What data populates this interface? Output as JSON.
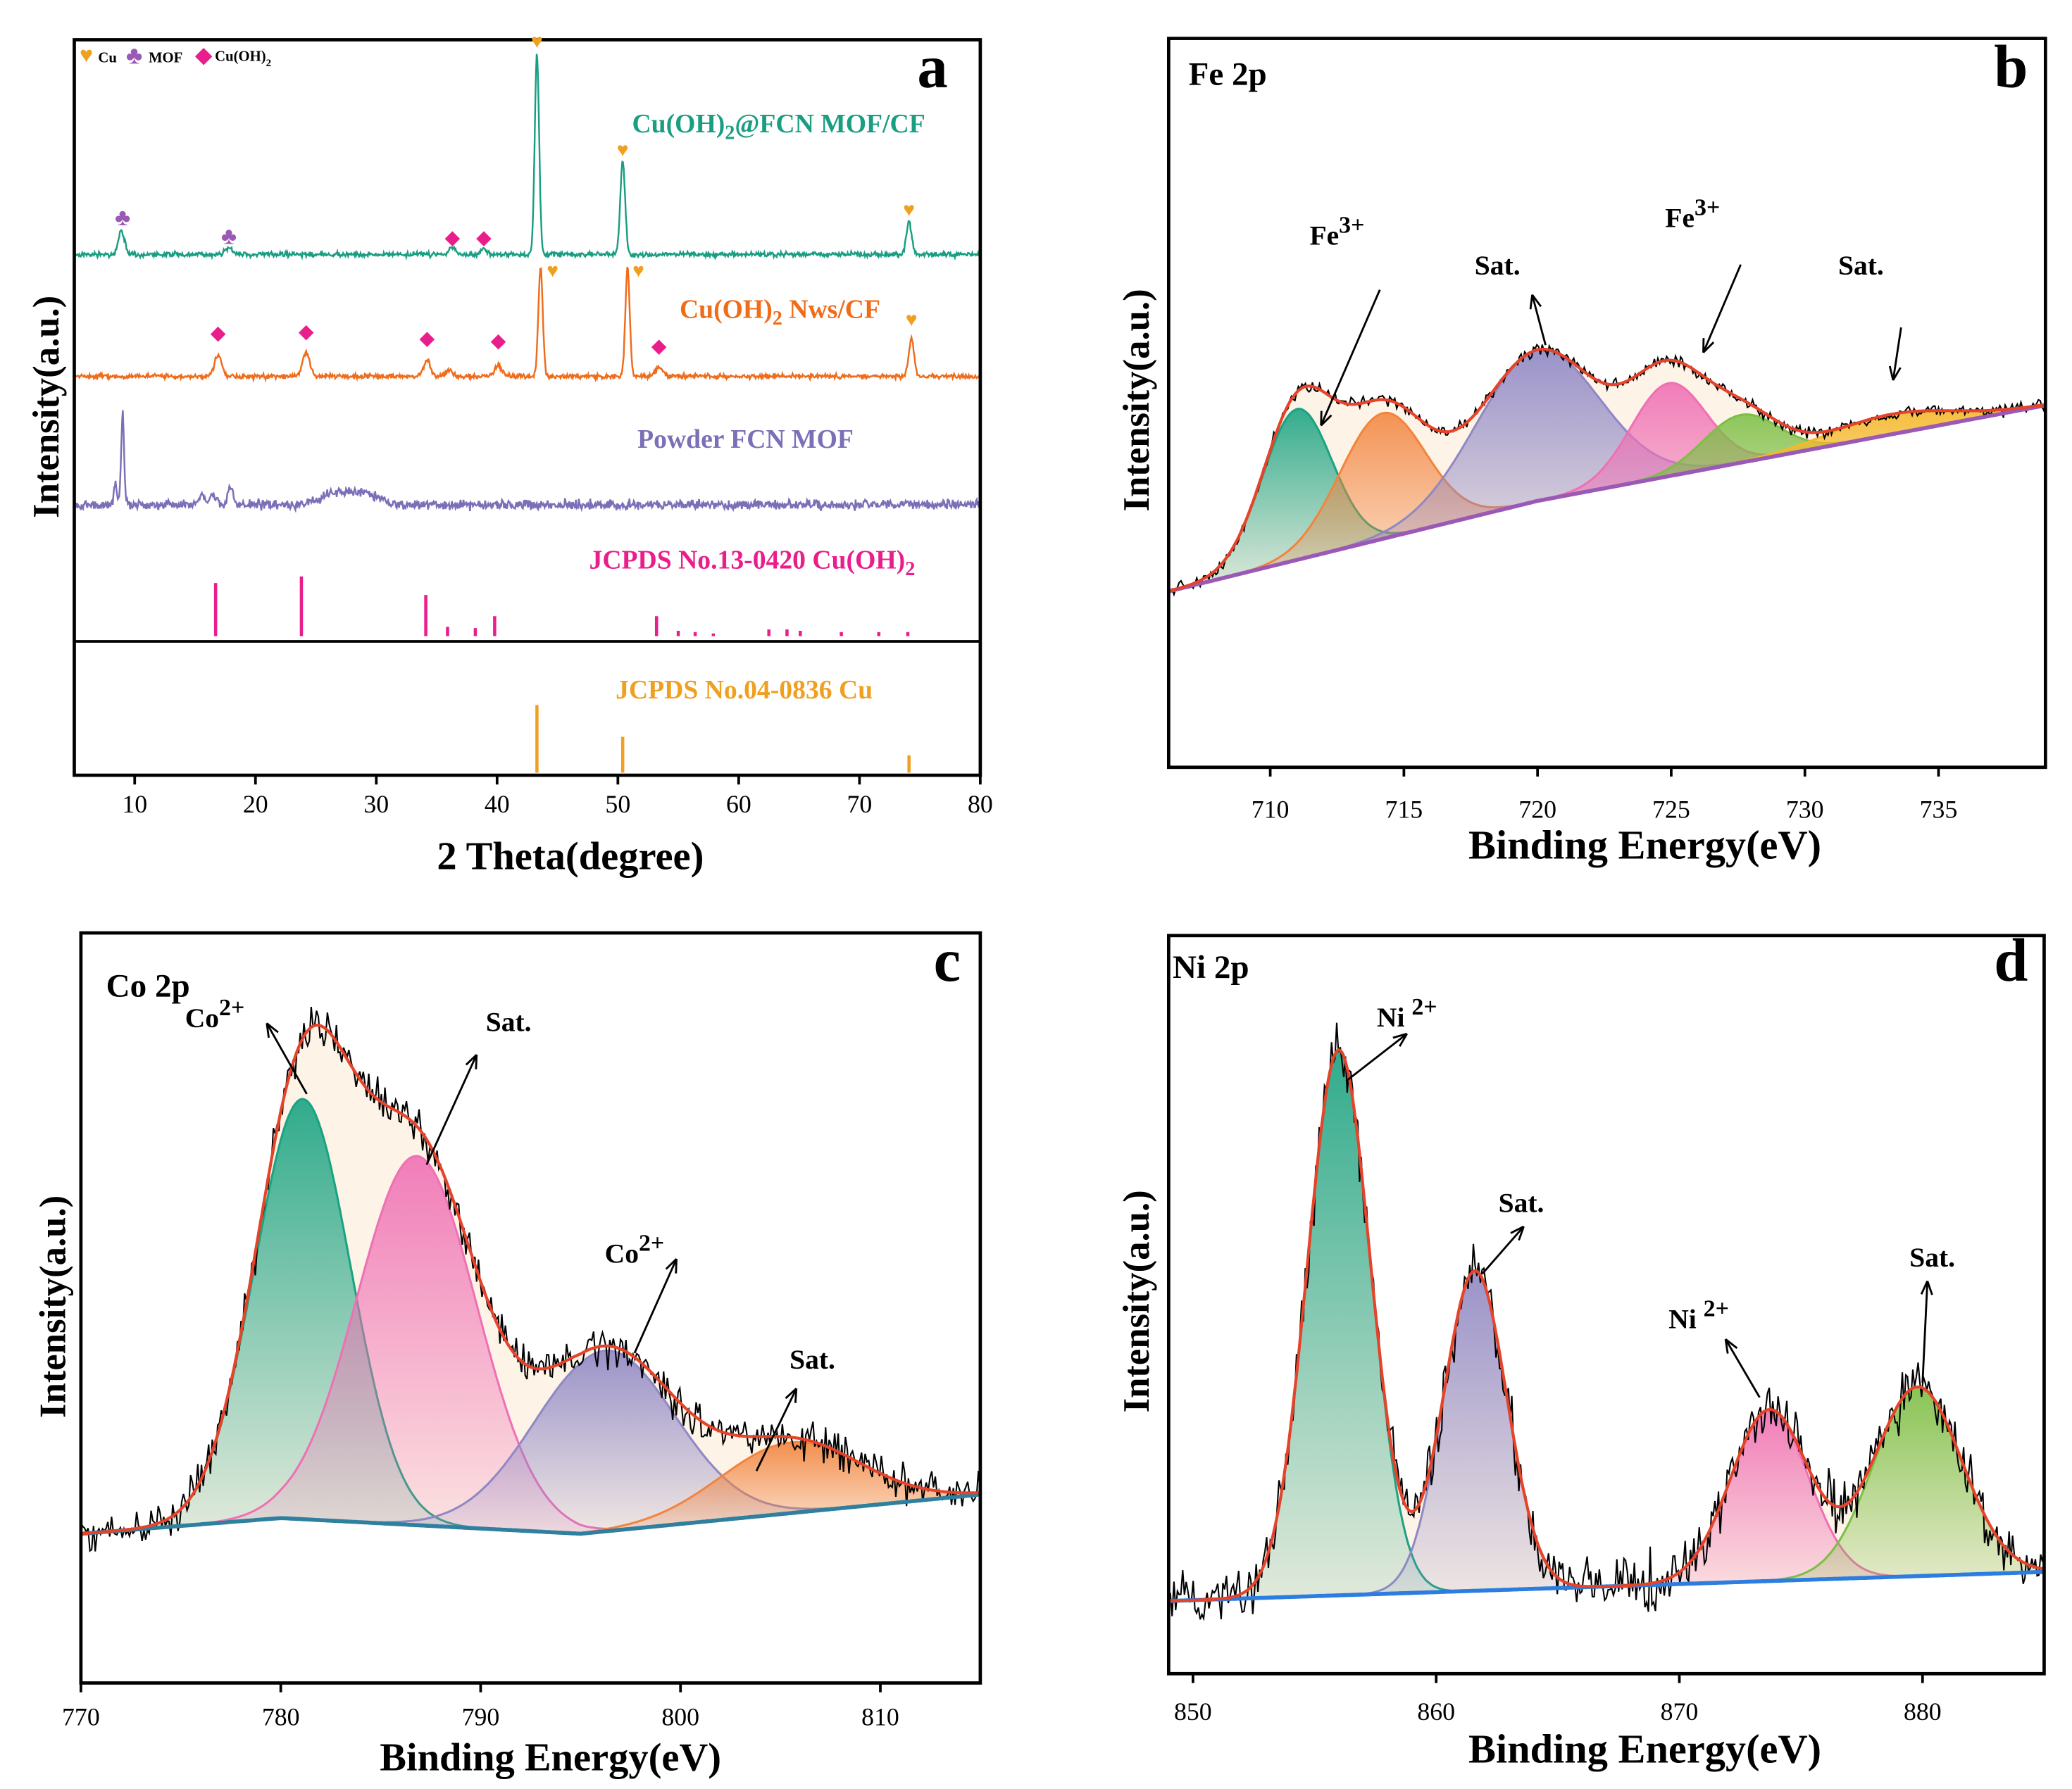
{
  "chart_data": [
    {
      "id": "a",
      "type": "line",
      "panel_letter": "a",
      "xlabel": "2 Theta(degree)",
      "ylabel": "Intensity(a.u.)",
      "xlim": [
        5,
        80
      ],
      "xticks": [
        10,
        20,
        30,
        40,
        50,
        60,
        70,
        80
      ],
      "legend": {
        "position": "top-left",
        "items": [
          {
            "symbol": "♥",
            "label": "Cu",
            "color": "#f0a020"
          },
          {
            "symbol": "♣",
            "label": "MOF",
            "color": "#9b59b6"
          },
          {
            "symbol": "◆",
            "label": "Cu(OH)",
            "sub": "2",
            "color": "#e91e8c"
          }
        ]
      },
      "series": [
        {
          "name": "Cu(OH)2@FCN MOF/CF",
          "label_main": "Cu(OH)",
          "label_sub": "2",
          "label_rest": "@FCN MOF/CF",
          "color": "#1a9e82",
          "baseline_y": 192,
          "noise": 1.5,
          "peaks": [
            {
              "x": 8.9,
              "h": 18,
              "w": 0.25
            },
            {
              "x": 17.8,
              "h": 5,
              "w": 0.3
            },
            {
              "x": 36.3,
              "h": 5,
              "w": 0.3
            },
            {
              "x": 38.9,
              "h": 4,
              "w": 0.3
            },
            {
              "x": 43.3,
              "h": 152,
              "w": 0.18
            },
            {
              "x": 50.4,
              "h": 70,
              "w": 0.2
            },
            {
              "x": 74.1,
              "h": 25,
              "w": 0.22
            }
          ],
          "markers": [
            {
              "x": 9,
              "symbol": "♣",
              "y_offset": 22
            },
            {
              "x": 17.8,
              "symbol": "♣",
              "y_offset": 8
            },
            {
              "x": 36.3,
              "symbol": "◆",
              "y_offset": 8
            },
            {
              "x": 38.9,
              "symbol": "◆",
              "y_offset": 8
            },
            {
              "x": 43.3,
              "symbol": "♥",
              "y_offset": 156
            },
            {
              "x": 50.4,
              "symbol": "♥",
              "y_offset": 74
            },
            {
              "x": 74.1,
              "symbol": "♥",
              "y_offset": 29
            }
          ]
        },
        {
          "name": "Cu(OH)2 Nws/CF",
          "label_main": "Cu(OH)",
          "label_sub": "2",
          "label_rest": " Nws/CF",
          "color": "#ef6c1a",
          "baseline_y": 284,
          "noise": 1.5,
          "peaks": [
            {
              "x": 16.9,
              "h": 16,
              "w": 0.3
            },
            {
              "x": 24.2,
              "h": 18,
              "w": 0.3
            },
            {
              "x": 34.2,
              "h": 12,
              "w": 0.3
            },
            {
              "x": 36.0,
              "h": 5,
              "w": 0.3
            },
            {
              "x": 40.1,
              "h": 8,
              "w": 0.3
            },
            {
              "x": 43.6,
              "h": 82,
              "w": 0.18
            },
            {
              "x": 50.8,
              "h": 82,
              "w": 0.18
            },
            {
              "x": 53.4,
              "h": 7,
              "w": 0.3
            },
            {
              "x": 74.3,
              "h": 28,
              "w": 0.22
            }
          ],
          "markers": [
            {
              "x": 16.9,
              "symbol": "◆",
              "y_offset": 28
            },
            {
              "x": 24.2,
              "symbol": "◆",
              "y_offset": 29
            },
            {
              "x": 34.2,
              "symbol": "◆",
              "y_offset": 24
            },
            {
              "x": 40.1,
              "symbol": "◆",
              "y_offset": 22
            },
            {
              "x": 44.6,
              "symbol": "♥",
              "y_offset": 75
            },
            {
              "x": 51.7,
              "symbol": "♥",
              "y_offset": 75
            },
            {
              "x": 53.4,
              "symbol": "◆",
              "y_offset": 18
            },
            {
              "x": 74.3,
              "symbol": "♥",
              "y_offset": 38
            }
          ]
        },
        {
          "name": "Powder FCN MOF",
          "label_main": "Powder FCN MOF",
          "label_sub": "",
          "label_rest": "",
          "color": "#7b6fb8",
          "baseline_y": 381,
          "noise": 3,
          "peaks": [
            {
              "x": 8.4,
              "h": 14,
              "w": 0.15
            },
            {
              "x": 9.0,
              "h": 70,
              "w": 0.12
            },
            {
              "x": 15.6,
              "h": 6,
              "w": 0.25
            },
            {
              "x": 16.5,
              "h": 8,
              "w": 0.25
            },
            {
              "x": 17.9,
              "h": 14,
              "w": 0.2
            },
            {
              "x": 26.5,
              "h": 8,
              "w": 1.2
            },
            {
              "x": 29,
              "h": 9,
              "w": 1.2
            }
          ],
          "markers": []
        }
      ],
      "references": [
        {
          "name": "JCPDS No.13-0420 Cu(OH)2",
          "label_main": "JCPDS No.13-0420 Cu(OH)",
          "label_sub": "2",
          "color": "#e91e8c",
          "sticks": [
            {
              "x": 16.7,
              "h": 40
            },
            {
              "x": 23.8,
              "h": 45
            },
            {
              "x": 34.1,
              "h": 31
            },
            {
              "x": 35.9,
              "h": 7
            },
            {
              "x": 38.2,
              "h": 6
            },
            {
              "x": 39.8,
              "h": 15
            },
            {
              "x": 53.2,
              "h": 15
            },
            {
              "x": 55.0,
              "h": 4
            },
            {
              "x": 56.4,
              "h": 3
            },
            {
              "x": 57.9,
              "h": 2
            },
            {
              "x": 62.5,
              "h": 5
            },
            {
              "x": 64.0,
              "h": 5
            },
            {
              "x": 65.1,
              "h": 4
            },
            {
              "x": 68.5,
              "h": 3
            },
            {
              "x": 71.6,
              "h": 3
            },
            {
              "x": 74.0,
              "h": 3
            }
          ]
        },
        {
          "name": "JCPDS No.04-0836 Cu",
          "label_main": "JCPDS No.04-0836 Cu",
          "label_sub": "",
          "color": "#f0a020",
          "sticks": [
            {
              "x": 43.3,
              "h": 51
            },
            {
              "x": 50.4,
              "h": 27
            },
            {
              "x": 74.1,
              "h": 13
            }
          ]
        }
      ]
    },
    {
      "id": "b",
      "type": "xps",
      "panel_letter": "b",
      "element_label": "Fe 2p",
      "xlabel": "Binding Energy(eV)",
      "ylabel": "Intensity(a.u.)",
      "xlim": [
        706.2,
        739
      ],
      "xticks": [
        710,
        715,
        720,
        725,
        730,
        735
      ],
      "ylim": [
        -0.7,
        2.2
      ],
      "background": [
        [
          706.2,
          0
        ],
        [
          720,
          0.36
        ],
        [
          739,
          0.74
        ]
      ],
      "background_color": "#9b59b6",
      "envelope_color": "#e5432a",
      "noise": 0.02,
      "components": [
        {
          "center": 711.0,
          "amp": 0.6,
          "sigma": 1.3,
          "color": "#1aa382"
        },
        {
          "center": 714.2,
          "amp": 0.5,
          "sigma": 1.6,
          "color": "#f2843e"
        },
        {
          "center": 720.0,
          "amp": 0.6,
          "sigma": 2.3,
          "color": "#8f88c5"
        },
        {
          "center": 724.9,
          "amp": 0.37,
          "sigma": 1.4,
          "color": "#ef70b4"
        },
        {
          "center": 727.6,
          "amp": 0.19,
          "sigma": 1.4,
          "color": "#7cbf45"
        },
        {
          "center": 733.2,
          "amp": 0.08,
          "sigma": 2.3,
          "color": "#f5b82a"
        }
      ],
      "annotations": [
        {
          "text": "Fe",
          "sup": "3+",
          "label_x": 712.5,
          "label_y": 1.38,
          "tip_x": 711.9,
          "tip_y": 0.66,
          "tail_x": 714.1,
          "tail_y": 1.2
        },
        {
          "text": "Sat.",
          "sup": "",
          "label_x": 718.5,
          "label_y": 1.26,
          "tip_x": 719.8,
          "tip_y": 1.18,
          "tail_x": 720.3,
          "tail_y": 0.98
        },
        {
          "text": "Fe",
          "sup": "3+",
          "label_x": 725.8,
          "label_y": 1.45,
          "tip_x": 726.2,
          "tip_y": 0.95,
          "tail_x": 727.6,
          "tail_y": 1.3
        },
        {
          "text": "Sat.",
          "sup": "",
          "label_x": 732.1,
          "label_y": 1.26,
          "tip_x": 733.3,
          "tip_y": 0.84,
          "tail_x": 733.6,
          "tail_y": 1.05
        }
      ]
    },
    {
      "id": "c",
      "type": "xps",
      "panel_letter": "c",
      "element_label": "Co 2p",
      "xlabel": "Binding Energy(eV)",
      "ylabel": "Intensity(a.u.)",
      "xlim": [
        770,
        815
      ],
      "xticks": [
        770,
        780,
        790,
        800,
        810
      ],
      "ylim": [
        -0.38,
        1.53
      ],
      "background": [
        [
          770,
          0
        ],
        [
          780,
          0.04
        ],
        [
          795,
          0
        ],
        [
          815,
          0.1
        ]
      ],
      "background_color": "#2f7f9f",
      "envelope_color": "#e5432a",
      "noise": 0.04,
      "components": [
        {
          "center": 781.1,
          "amp": 1.07,
          "sigma": 2.4,
          "color": "#1aa382"
        },
        {
          "center": 786.8,
          "amp": 0.94,
          "sigma": 3.0,
          "color": "#ef70b4"
        },
        {
          "center": 796.2,
          "amp": 0.46,
          "sigma": 3.5,
          "color": "#8f88c5"
        },
        {
          "center": 805.5,
          "amp": 0.18,
          "sigma": 3.5,
          "color": "#f2843e"
        }
      ],
      "annotations": [
        {
          "text": "Co",
          "sup": "2+",
          "label_x": 776.7,
          "label_y": 1.29,
          "tip_x": 779.3,
          "tip_y": 1.3,
          "tail_x": 781.3,
          "tail_y": 1.12
        },
        {
          "text": "Sat.",
          "sup": "",
          "label_x": 791.4,
          "label_y": 1.28,
          "tip_x": 789.8,
          "tip_y": 1.22,
          "tail_x": 787.3,
          "tail_y": 0.94
        },
        {
          "text": "Co",
          "sup": "2+",
          "label_x": 797.7,
          "label_y": 0.69,
          "tip_x": 799.8,
          "tip_y": 0.7,
          "tail_x": 797.7,
          "tail_y": 0.46
        },
        {
          "text": "Sat.",
          "sup": "",
          "label_x": 806.6,
          "label_y": 0.42,
          "tip_x": 805.8,
          "tip_y": 0.37,
          "tail_x": 803.8,
          "tail_y": 0.16
        }
      ]
    },
    {
      "id": "d",
      "type": "xps",
      "panel_letter": "d",
      "element_label": "Ni 2p",
      "xlabel": "Binding Energy(eV)",
      "ylabel": "Intensity(a.u.)",
      "xlim": [
        849,
        885
      ],
      "xticks": [
        850,
        860,
        870,
        880
      ],
      "ylim": [
        -0.2,
        1.83
      ],
      "background": [
        [
          849,
          0
        ],
        [
          885,
          0.08
        ]
      ],
      "background_color": "#2b7de0",
      "envelope_color": "#e5432a",
      "noise": 0.06,
      "components": [
        {
          "center": 856.0,
          "amp": 1.5,
          "sigma": 1.3,
          "color": "#1aa382"
        },
        {
          "center": 861.6,
          "amp": 0.88,
          "sigma": 1.3,
          "color": "#8f88c5"
        },
        {
          "center": 873.7,
          "amp": 0.47,
          "sigma": 1.6,
          "color": "#ef70b4"
        },
        {
          "center": 879.8,
          "amp": 0.52,
          "sigma": 1.8,
          "color": "#7cbf45"
        }
      ],
      "annotations": [
        {
          "text": "Ni ",
          "sup": "2+",
          "label_x": 858.8,
          "label_y": 1.58,
          "tip_x": 858.8,
          "tip_y": 1.56,
          "tail_x": 856.3,
          "tail_y": 1.43
        },
        {
          "text": "Sat.",
          "sup": "",
          "label_x": 863.5,
          "label_y": 1.07,
          "tip_x": 863.6,
          "tip_y": 1.03,
          "tail_x": 861.9,
          "tail_y": 0.9
        },
        {
          "text": "Ni ",
          "sup": "2+",
          "label_x": 870.8,
          "label_y": 0.75,
          "tip_x": 871.9,
          "tip_y": 0.72,
          "tail_x": 873.3,
          "tail_y": 0.56
        },
        {
          "text": "Sat.",
          "sup": "",
          "label_x": 880.4,
          "label_y": 0.92,
          "tip_x": 880.2,
          "tip_y": 0.88,
          "tail_x": 880.0,
          "tail_y": 0.6
        }
      ]
    }
  ]
}
